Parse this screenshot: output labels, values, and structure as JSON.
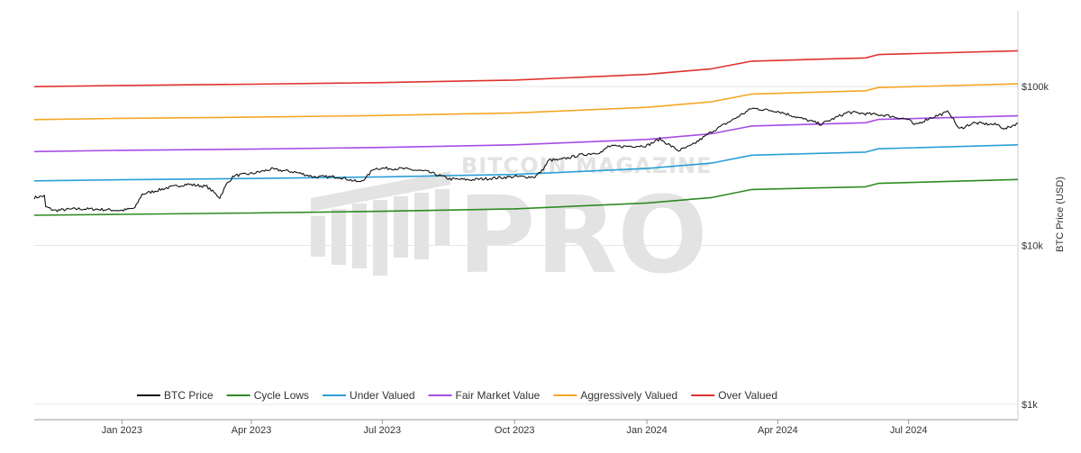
{
  "chart_data": {
    "type": "line",
    "title": "",
    "ylabel": "BTC Price (USD)",
    "yscale": "log",
    "ylim": [
      800,
      300000
    ],
    "y_ticks": [
      {
        "value": 1000,
        "label": "$1k"
      },
      {
        "value": 10000,
        "label": "$10k"
      },
      {
        "value": 100000,
        "label": "$100k"
      }
    ],
    "xlim": [
      "2022-11-01",
      "2024-09-15"
    ],
    "x_ticks": [
      {
        "date": "2023-01-01",
        "label": "Jan 2023"
      },
      {
        "date": "2023-04-01",
        "label": "Apr 2023"
      },
      {
        "date": "2023-07-01",
        "label": "Jul 2023"
      },
      {
        "date": "2023-10-01",
        "label": "Oct 2023"
      },
      {
        "date": "2024-01-01",
        "label": "Jan 2024"
      },
      {
        "date": "2024-04-01",
        "label": "Apr 2024"
      },
      {
        "date": "2024-07-01",
        "label": "Jul 2024"
      }
    ],
    "grid": true,
    "legend_position": "bottom",
    "watermark": {
      "small": "BITCOIN MAGAZINE",
      "big": "PRO"
    },
    "series": [
      {
        "name": "BTC Price",
        "color": "#111111",
        "dates": [
          "2022-11-01",
          "2022-11-08",
          "2022-11-09",
          "2022-11-15",
          "2022-12-01",
          "2022-12-15",
          "2023-01-01",
          "2023-01-10",
          "2023-01-15",
          "2023-02-01",
          "2023-02-15",
          "2023-03-01",
          "2023-03-10",
          "2023-03-15",
          "2023-03-20",
          "2023-04-01",
          "2023-04-15",
          "2023-05-01",
          "2023-05-15",
          "2023-06-01",
          "2023-06-15",
          "2023-06-20",
          "2023-06-25",
          "2023-07-01",
          "2023-07-15",
          "2023-08-01",
          "2023-08-17",
          "2023-09-01",
          "2023-09-15",
          "2023-10-01",
          "2023-10-15",
          "2023-10-20",
          "2023-10-25",
          "2023-11-01",
          "2023-11-15",
          "2023-12-01",
          "2023-12-05",
          "2023-12-15",
          "2024-01-01",
          "2024-01-10",
          "2024-01-23",
          "2024-02-01",
          "2024-02-15",
          "2024-03-01",
          "2024-03-14",
          "2024-04-01",
          "2024-04-15",
          "2024-05-01",
          "2024-05-20",
          "2024-06-01",
          "2024-06-15",
          "2024-07-01",
          "2024-07-05",
          "2024-07-15",
          "2024-07-29",
          "2024-08-05",
          "2024-08-15",
          "2024-09-01",
          "2024-09-06",
          "2024-09-15"
        ],
        "values": [
          20000,
          20500,
          17500,
          16600,
          17000,
          16900,
          16600,
          17200,
          21000,
          23000,
          24300,
          23500,
          20000,
          24500,
          27500,
          28300,
          30200,
          29000,
          27000,
          27000,
          25000,
          26800,
          30500,
          30600,
          30400,
          29200,
          26200,
          25900,
          26500,
          27100,
          27000,
          29500,
          34500,
          34500,
          37000,
          38800,
          42000,
          42000,
          42500,
          46800,
          39500,
          42500,
          52000,
          62000,
          73000,
          70000,
          64000,
          58000,
          69000,
          67500,
          66000,
          62000,
          57000,
          63000,
          69500,
          54000,
          59000,
          57500,
          54000,
          59000
        ]
      },
      {
        "name": "Cycle Lows",
        "color": "#2e8b22",
        "dates": [
          "2022-11-01",
          "2023-01-01",
          "2023-04-01",
          "2023-07-01",
          "2023-10-01",
          "2024-01-01",
          "2024-02-15",
          "2024-03-14",
          "2024-06-01",
          "2024-06-10",
          "2024-09-15"
        ],
        "values": [
          15500,
          15700,
          16000,
          16400,
          17000,
          18500,
          20000,
          22500,
          23400,
          24600,
          26000
        ]
      },
      {
        "name": "Under Valued",
        "color": "#2a9fd6",
        "dates": [
          "2022-11-01",
          "2023-01-01",
          "2023-04-01",
          "2023-07-01",
          "2023-10-01",
          "2024-01-01",
          "2024-02-15",
          "2024-03-14",
          "2024-06-01",
          "2024-06-10",
          "2024-09-15"
        ],
        "values": [
          25500,
          25900,
          26400,
          27000,
          28000,
          30500,
          33000,
          37000,
          38700,
          40600,
          43000
        ]
      },
      {
        "name": "Fair Market Value",
        "color": "#a64ce6",
        "dates": [
          "2022-11-01",
          "2023-01-01",
          "2023-04-01",
          "2023-07-01",
          "2023-10-01",
          "2024-01-01",
          "2024-02-15",
          "2024-03-14",
          "2024-06-01",
          "2024-06-10",
          "2024-09-15"
        ],
        "values": [
          39000,
          39700,
          40400,
          41400,
          43000,
          46500,
          50500,
          56500,
          59200,
          62100,
          65500
        ]
      },
      {
        "name": "Aggressively Valued",
        "color": "#f5a623",
        "dates": [
          "2022-11-01",
          "2023-01-01",
          "2023-04-01",
          "2023-07-01",
          "2023-10-01",
          "2024-01-01",
          "2024-02-15",
          "2024-03-14",
          "2024-06-01",
          "2024-06-10",
          "2024-09-15"
        ],
        "values": [
          62000,
          63100,
          64200,
          65800,
          68300,
          74000,
          80300,
          89800,
          94100,
          98700,
          104000
        ]
      },
      {
        "name": "Over Valued",
        "color": "#e0322c",
        "dates": [
          "2022-11-01",
          "2023-01-01",
          "2023-04-01",
          "2023-07-01",
          "2023-10-01",
          "2024-01-01",
          "2024-02-15",
          "2024-03-14",
          "2024-06-01",
          "2024-06-10",
          "2024-09-15"
        ],
        "values": [
          100000,
          101700,
          103500,
          106000,
          110000,
          119300,
          129400,
          144700,
          151500,
          159000,
          168000
        ]
      }
    ]
  }
}
